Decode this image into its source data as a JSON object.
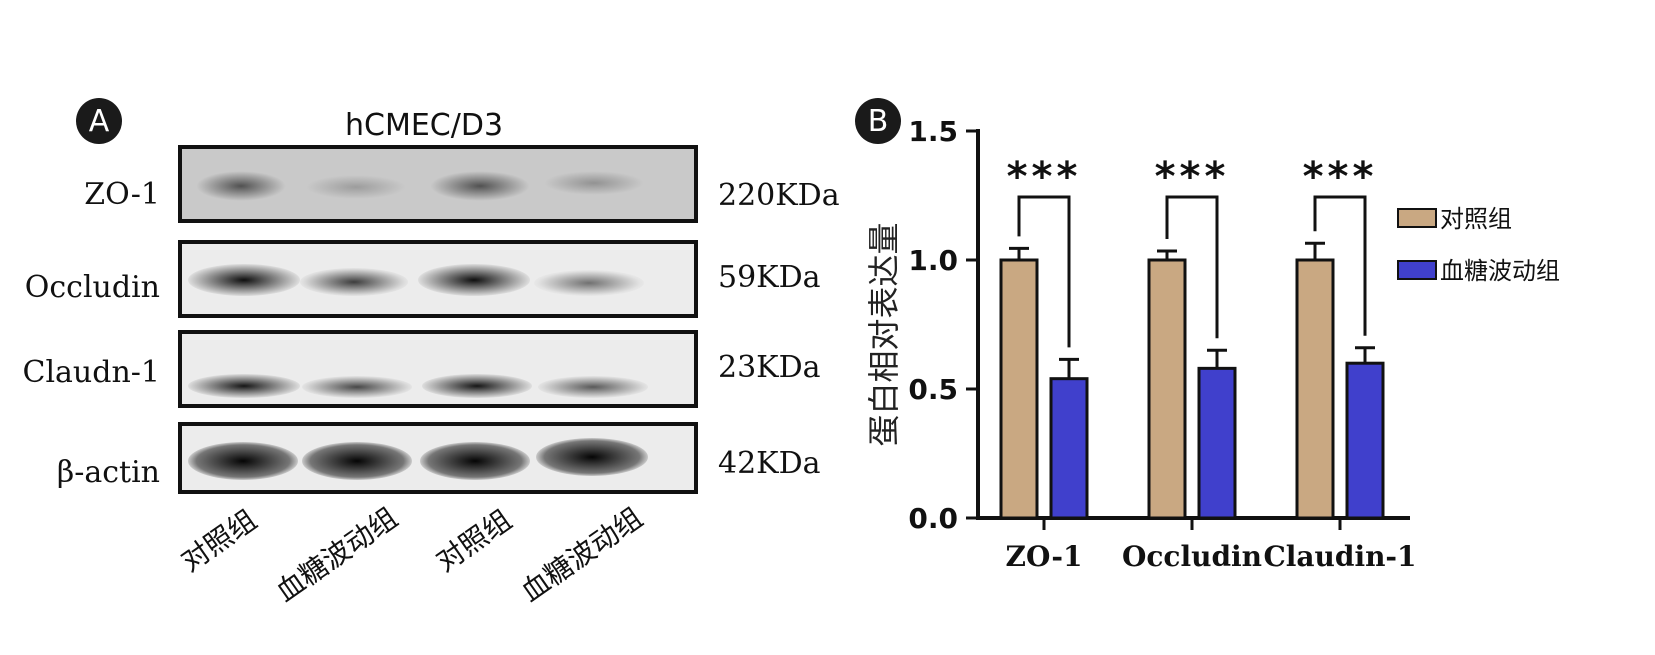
{
  "panel_a": {
    "badge": "A",
    "cell_line": "hCMEC/D3",
    "rows": [
      {
        "label": "ZO-1",
        "kda": "220KDa"
      },
      {
        "label": "Occludin",
        "kda": "59KDa"
      },
      {
        "label": "Claudn-1",
        "kda": "23KDa"
      },
      {
        "label": "β-actin",
        "kda": "42KDa"
      }
    ],
    "lanes": [
      "对照组",
      "血糖波动组",
      "对照组",
      "血糖波动组"
    ]
  },
  "panel_b": {
    "badge": "B"
  },
  "chart_data": {
    "type": "bar",
    "categories": [
      "ZO-1",
      "Occludin",
      "Claudin-1"
    ],
    "series": [
      {
        "name": "对照组",
        "values": [
          1.0,
          1.0,
          1.0
        ],
        "errors": [
          0.045,
          0.035,
          0.065
        ],
        "color": "#c9a882"
      },
      {
        "name": "血糖波动组",
        "values": [
          0.54,
          0.58,
          0.6
        ],
        "errors": [
          0.075,
          0.07,
          0.06
        ],
        "color": "#4040cc"
      }
    ],
    "significance": [
      "***",
      "***",
      "***"
    ],
    "ylabel": "蛋白相对表达量",
    "xlabel": "",
    "ylim": [
      0,
      1.5
    ],
    "yticks": [
      "0.0",
      "0.5",
      "1.0",
      "1.5"
    ],
    "legend_position": "right",
    "grid": false
  }
}
